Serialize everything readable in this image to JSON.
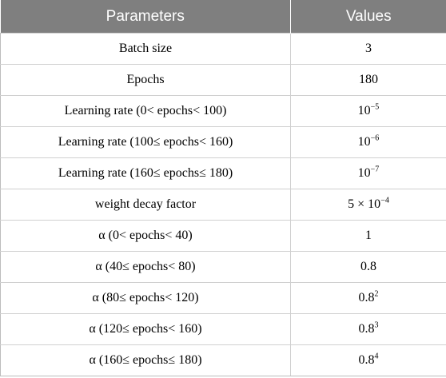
{
  "table": {
    "headers": {
      "parameter": "Parameters",
      "value": "Values"
    },
    "rows": [
      {
        "parameter": "Batch size",
        "value_base": "3",
        "value_exp": ""
      },
      {
        "parameter": "Epochs",
        "value_base": "180",
        "value_exp": ""
      },
      {
        "parameter": "Learning rate (0< epochs< 100)",
        "value_base": "10",
        "value_exp": "−5"
      },
      {
        "parameter": "Learning rate (100≤ epochs< 160)",
        "value_base": "10",
        "value_exp": "−6"
      },
      {
        "parameter": "Learning rate (160≤ epochs≤ 180)",
        "value_base": "10",
        "value_exp": "−7"
      },
      {
        "parameter": "weight decay factor",
        "value_base": "5 × 10",
        "value_exp": "−4"
      },
      {
        "parameter": "α (0< epochs< 40)",
        "value_base": "1",
        "value_exp": ""
      },
      {
        "parameter": "α (40≤ epochs< 80)",
        "value_base": "0.8",
        "value_exp": ""
      },
      {
        "parameter": "α (80≤ epochs< 120)",
        "value_base": "0.8",
        "value_exp": "2"
      },
      {
        "parameter": "α (120≤ epochs< 160)",
        "value_base": "0.8",
        "value_exp": "3"
      },
      {
        "parameter": "α (160≤ epochs≤ 180)",
        "value_base": "0.8",
        "value_exp": "4"
      }
    ]
  }
}
